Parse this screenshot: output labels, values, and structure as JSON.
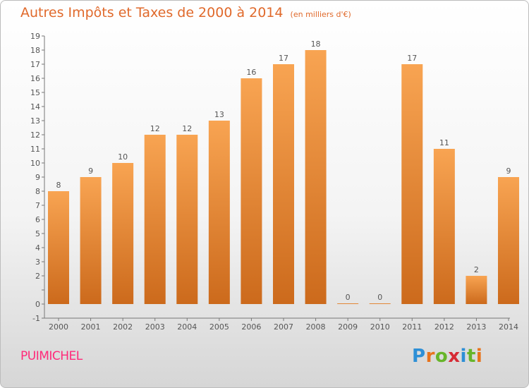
{
  "header": {
    "title": "Autres Impôts et Taxes de 2000 à 2014",
    "subtitle": "(en milliers d'€)"
  },
  "footer": {
    "commune": "PUIMICHEL",
    "brand_letters": [
      "P",
      "r",
      "o",
      "x",
      "i",
      "t",
      "i"
    ],
    "brand_colors": [
      "#2d8fd6",
      "#e8731c",
      "#67b52a",
      "#d62b35",
      "#2d8fd6",
      "#67b52a",
      "#e8731c"
    ]
  },
  "colors": {
    "bar_light": "#f8a452",
    "bar_dark": "#cc6a1c",
    "title": "#e0692b",
    "commune": "#ff2a7a"
  },
  "chart_data": {
    "type": "bar",
    "title": "Autres Impôts et Taxes de 2000 à 2014",
    "subtitle": "(en milliers d'€)",
    "categories": [
      "2000",
      "2001",
      "2002",
      "2003",
      "2004",
      "2005",
      "2006",
      "2007",
      "2008",
      "2009",
      "2010",
      "2011",
      "2012",
      "2013",
      "2014"
    ],
    "values": [
      8,
      9,
      10,
      12,
      12,
      13,
      16,
      17,
      18,
      0,
      0,
      17,
      11,
      2,
      9
    ],
    "data_labels": [
      "8",
      "9",
      "10",
      "12",
      "12",
      "13",
      "16",
      "17",
      "18",
      "0",
      "0",
      "17",
      "11",
      "2",
      "9"
    ],
    "ylim": [
      -1,
      19
    ],
    "yticks": [
      "-1",
      "0",
      "",
      "2",
      "3",
      "4",
      "5",
      "6",
      "7",
      "8",
      "9",
      "10",
      "11",
      "12",
      "13",
      "14",
      "15",
      "16",
      "17",
      "18",
      "19"
    ],
    "grid": false,
    "legend": "none"
  }
}
